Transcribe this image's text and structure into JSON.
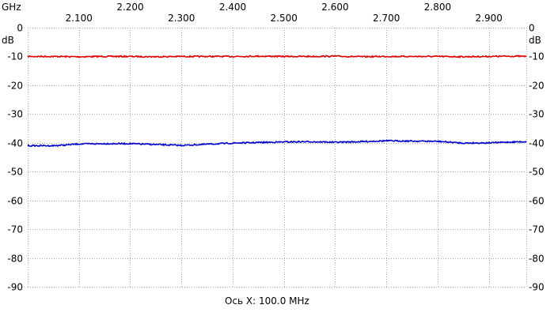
{
  "chart_data": {
    "type": "line",
    "title": "",
    "x_unit_label": "GHz",
    "y_unit_label": "dB",
    "xlabel": "Ось X: 100.0 MHz",
    "xlim": [
      2.0,
      2.973
    ],
    "ylim": [
      -90,
      0
    ],
    "x_ticks": [
      "2.100",
      "2.200",
      "2.300",
      "2.400",
      "2.500",
      "2.600",
      "2.700",
      "2.800",
      "2.900"
    ],
    "x_tick_values": [
      2.1,
      2.2,
      2.3,
      2.4,
      2.5,
      2.6,
      2.7,
      2.8,
      2.9
    ],
    "y_ticks": [
      "0",
      "-10",
      "-20",
      "-30",
      "-40",
      "-50",
      "-60",
      "-70",
      "-80",
      "-90"
    ],
    "y_tick_values": [
      0,
      -10,
      -20,
      -30,
      -40,
      -50,
      -60,
      -70,
      -80,
      -90
    ],
    "grid": true,
    "series": [
      {
        "color": "#e00000",
        "x": [
          2.0,
          2.05,
          2.1,
          2.15,
          2.2,
          2.25,
          2.3,
          2.35,
          2.4,
          2.45,
          2.5,
          2.55,
          2.6,
          2.65,
          2.7,
          2.75,
          2.8,
          2.85,
          2.9,
          2.95,
          2.973
        ],
        "y": [
          -10,
          -10,
          -10.1,
          -10,
          -10,
          -10.1,
          -10,
          -10,
          -10,
          -9.9,
          -10,
          -10,
          -9.9,
          -10.1,
          -10,
          -10,
          -10,
          -10.1,
          -10,
          -9.9,
          -10
        ]
      },
      {
        "color": "#0000d0",
        "x": [
          2.0,
          2.05,
          2.07,
          2.1,
          2.15,
          2.2,
          2.25,
          2.3,
          2.35,
          2.4,
          2.45,
          2.5,
          2.55,
          2.6,
          2.65,
          2.7,
          2.75,
          2.8,
          2.85,
          2.9,
          2.95,
          2.973
        ],
        "y": [
          -41,
          -41,
          -40.8,
          -40.4,
          -40.3,
          -40.3,
          -40.6,
          -40.9,
          -40.5,
          -40.1,
          -39.9,
          -39.7,
          -39.6,
          -39.8,
          -39.6,
          -39.3,
          -39.4,
          -39.5,
          -40.1,
          -40.0,
          -39.7,
          -39.6
        ]
      }
    ]
  }
}
